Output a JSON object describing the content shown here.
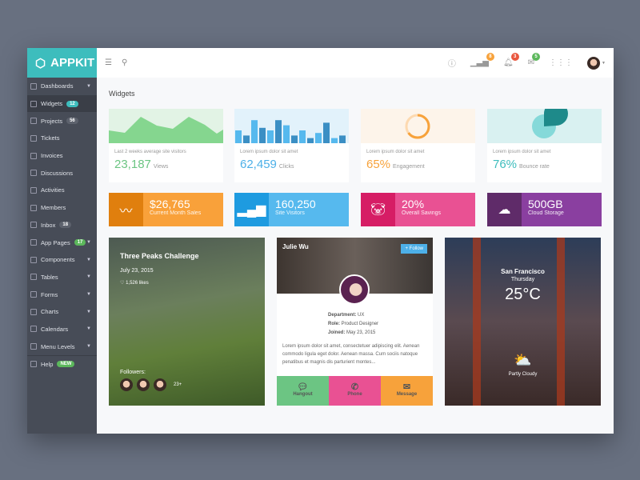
{
  "app": {
    "name": "APPKIT"
  },
  "sidebar": {
    "items": [
      {
        "label": "Dashboards",
        "caret": true
      },
      {
        "label": "Widgets",
        "badge": "12",
        "badge_color": "#3dbdbd",
        "active": true
      },
      {
        "label": "Projects",
        "badge": "56",
        "badge_color": "#5d626d"
      },
      {
        "label": "Tickets"
      },
      {
        "label": "Invoices"
      },
      {
        "label": "Discussions"
      },
      {
        "label": "Activities"
      },
      {
        "label": "Members"
      },
      {
        "label": "Inbox",
        "badge": "18",
        "badge_color": "#5d626d"
      },
      {
        "label": "App Pages",
        "badge": "17",
        "badge_color": "#5cb85c",
        "caret": true
      },
      {
        "label": "Components",
        "caret": true
      },
      {
        "label": "Tables",
        "caret": true
      },
      {
        "label": "Forms",
        "caret": true
      },
      {
        "label": "Charts",
        "caret": true
      },
      {
        "label": "Calendars",
        "caret": true
      },
      {
        "label": "Menu Levels",
        "caret": true
      },
      {
        "label": "Help",
        "badge": "NEW",
        "badge_color": "#5cb85c"
      }
    ]
  },
  "header": {
    "badges": [
      {
        "icon": "signal-icon",
        "count": "8",
        "color": "#f7a23b"
      },
      {
        "icon": "bell-icon",
        "count": "3",
        "color": "#e9573f"
      },
      {
        "icon": "mail-icon",
        "count": "5",
        "color": "#5cb85c"
      }
    ]
  },
  "page": {
    "title": "Widgets"
  },
  "stats": [
    {
      "sub": "Last 2 weeks average site visitors",
      "value": "23,187",
      "unit": "Views",
      "color": "#6cc583",
      "bg": "#e2f3e5"
    },
    {
      "sub": "Lorem ipsum dolor sit amet",
      "value": "62,459",
      "unit": "Clicks",
      "color": "#4db0e8",
      "bg": "#e2f2fb",
      "bars": [
        50,
        30,
        90,
        60,
        50,
        90,
        70,
        30,
        50,
        20,
        40,
        80,
        20,
        30
      ]
    },
    {
      "sub": "Lorem ipsum dolor sit amet",
      "value": "65%",
      "unit": "Engagement",
      "color": "#f7a23b",
      "bg": "#fdf4ea",
      "percent": 65
    },
    {
      "sub": "Lorem ipsum dolor sit amet",
      "value": "76%",
      "unit": "Bounce rate",
      "color": "#3dbdbd",
      "bg": "#d9f1f1",
      "percent": 76
    }
  ],
  "tiles": [
    {
      "value": "$26,765",
      "label": "Current Month Sales",
      "icon": "trend-icon",
      "dark": "#e07f0e",
      "light": "#f9a13a"
    },
    {
      "value": "160,250",
      "label": "Site Visitors",
      "icon": "bar-chart-icon",
      "dark": "#1e9be0",
      "light": "#56b9ee"
    },
    {
      "value": "20%",
      "label": "Overall Savings",
      "icon": "piggy-bank-icon",
      "dark": "#d61d65",
      "light": "#e95193"
    },
    {
      "value": "500GB",
      "label": "Cloud Storage",
      "icon": "cloud-upload-icon",
      "dark": "#5f2b69",
      "light": "#8a3fa0"
    }
  ],
  "event": {
    "title": "Three Peaks Challenge",
    "date": "July 23, 2015",
    "likes": "1,526 likes",
    "followers_label": "Followers:",
    "more": "23+"
  },
  "profile": {
    "name": "Julie Wu",
    "follow": "+ Follow",
    "dept_label": "Department:",
    "dept": "UX",
    "role_label": "Role:",
    "role": "Product Designer",
    "joined_label": "Joined:",
    "joined": "May 23, 2015",
    "bio": "Lorem ipsum dolor sit amet, consectetuer adipiscing elit. Aenean commodo ligula eget dolor. Aenean massa. Cum sociis natoque penatibus et magnis dis parturient montes...",
    "actions": [
      {
        "label": "Hangout",
        "color": "#6cc583"
      },
      {
        "label": "Phone",
        "color": "#e95193"
      },
      {
        "label": "Message",
        "color": "#f7a23b"
      }
    ]
  },
  "weather": {
    "city": "San Francisco",
    "day": "Thursday",
    "temp": "25°C",
    "condition": "Partly Cloudy"
  }
}
